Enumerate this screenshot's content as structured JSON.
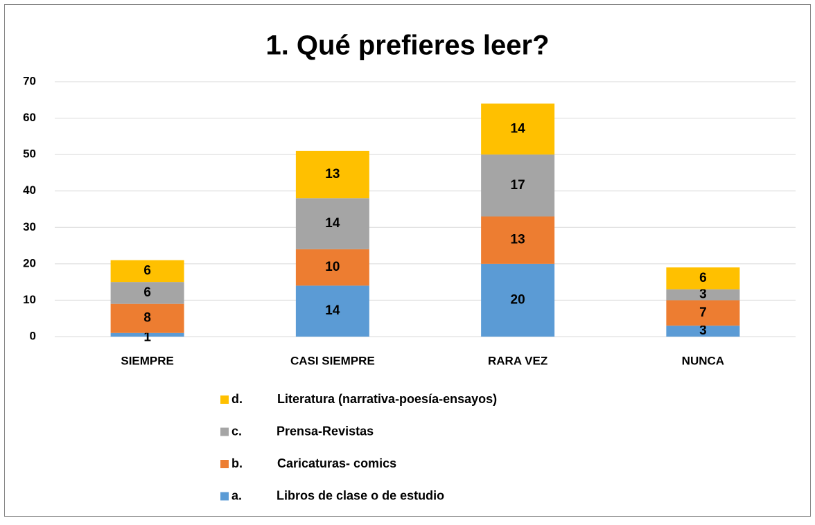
{
  "chart_data": {
    "type": "bar",
    "stacked": true,
    "title": "1. Qué prefieres leer?",
    "categories": [
      "SIEMPRE",
      "CASI SIEMPRE",
      "RARA VEZ",
      "NUNCA"
    ],
    "series": [
      {
        "name": "a.          Libros de clase o de estudio",
        "color": "#5b9bd5",
        "values": [
          1,
          14,
          20,
          3
        ]
      },
      {
        "name": "b.          Caricaturas- comics",
        "color": "#ed7d31",
        "values": [
          8,
          10,
          13,
          7
        ]
      },
      {
        "name": "c.          Prensa-Revistas",
        "color": "#a5a5a5",
        "values": [
          6,
          14,
          17,
          3
        ]
      },
      {
        "name": "d.          Literatura (narrativa-poesía-ensayos)",
        "color": "#ffc000",
        "values": [
          6,
          13,
          14,
          6
        ]
      }
    ],
    "ylim": [
      0,
      70
    ],
    "yticks": [
      0,
      10,
      20,
      30,
      40,
      50,
      60,
      70
    ],
    "grid": true,
    "legend": "bottom"
  }
}
